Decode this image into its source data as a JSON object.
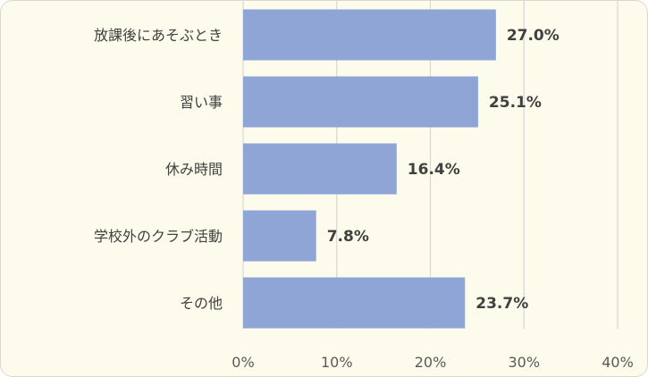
{
  "chart_data": {
    "type": "bar",
    "orientation": "horizontal",
    "categories": [
      "放課後にあそぶとき",
      "習い事",
      "休み時間",
      "学校外のクラブ活動",
      "その他"
    ],
    "values": [
      27.0,
      25.1,
      16.4,
      7.8,
      23.7
    ],
    "data_labels": [
      "27.0%",
      "25.1%",
      "16.4%",
      "7.8%",
      "23.7%"
    ],
    "xlim": [
      0,
      40
    ],
    "xticks": [
      0,
      10,
      20,
      30,
      40
    ],
    "xtick_labels": [
      "0%",
      "10%",
      "20%",
      "30%",
      "40%"
    ],
    "grid": "vertical",
    "bar_color": "#8ea5d6",
    "gridline_color": "#d9d9d9",
    "background_color": "#fdfcec"
  }
}
